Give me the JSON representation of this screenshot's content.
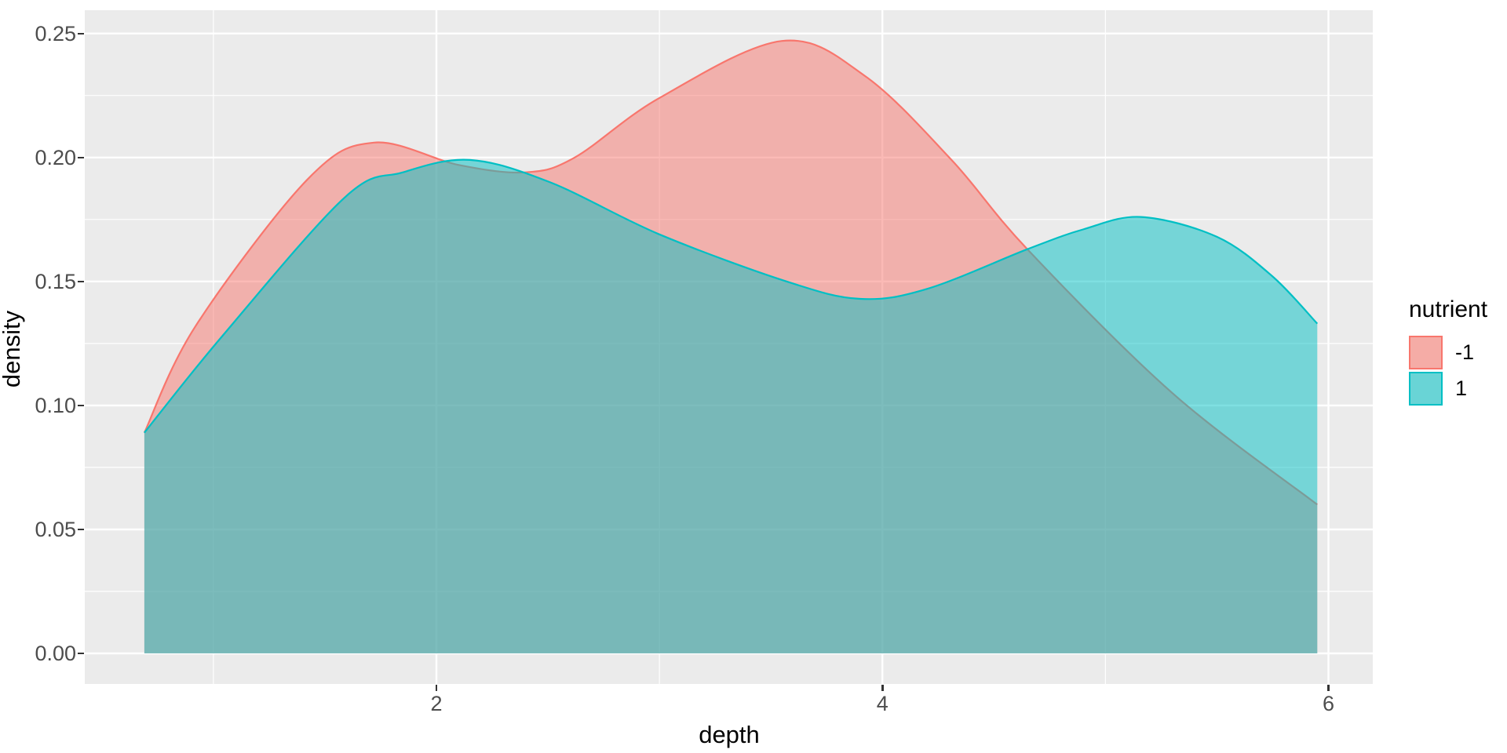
{
  "page": {
    "background": "#FFFFFF"
  },
  "chart_data": {
    "type": "area",
    "subtype": "kernel-density",
    "title": "",
    "xlabel": "depth",
    "ylabel": "density",
    "panel_bg": "#EBEBEB",
    "grid_color": "#FFFFFF",
    "grid": true,
    "tick_color": "#333333",
    "tick_label_color": "#4D4D4D",
    "xlim": [
      0.423,
      6.199
    ],
    "ylim": [
      -0.01233,
      0.2594
    ],
    "x_ticks": [
      {
        "v": 2,
        "label": "2"
      },
      {
        "v": 4,
        "label": "4"
      },
      {
        "v": 6,
        "label": "6"
      }
    ],
    "y_ticks": [
      {
        "v": 0.0,
        "label": "0.00"
      },
      {
        "v": 0.05,
        "label": "0.05"
      },
      {
        "v": 0.1,
        "label": "0.10"
      },
      {
        "v": 0.15,
        "label": "0.15"
      },
      {
        "v": 0.2,
        "label": "0.20"
      },
      {
        "v": 0.25,
        "label": "0.25"
      }
    ],
    "x_minor": [
      1,
      3,
      5
    ],
    "y_minor": [
      0.025,
      0.075,
      0.125,
      0.175,
      0.225
    ],
    "legend_position": "right",
    "legend": {
      "title": "nutrient",
      "entries": [
        {
          "label": "-1",
          "color": "#F8766D",
          "key_fill": "#F5ACA6"
        },
        {
          "label": "1",
          "color": "#00BFC4",
          "key_fill": "#69D4D6"
        }
      ]
    },
    "series": [
      {
        "name": "-1",
        "color": "#F8766D",
        "fill": "rgba(248,118,109,0.5)",
        "points": [
          [
            0.69,
            0.089
          ],
          [
            0.92,
            0.132
          ],
          [
            1.42,
            0.191
          ],
          [
            1.72,
            0.206
          ],
          [
            2.1,
            0.197
          ],
          [
            2.4,
            0.194
          ],
          [
            2.62,
            0.2
          ],
          [
            3.0,
            0.224
          ],
          [
            3.55,
            0.247
          ],
          [
            3.92,
            0.233
          ],
          [
            4.31,
            0.199
          ],
          [
            4.65,
            0.163
          ],
          [
            5.3,
            0.105
          ],
          [
            5.95,
            0.06
          ]
        ]
      },
      {
        "name": "1",
        "color": "#00BFC4",
        "fill": "rgba(0,191,196,0.5)",
        "points": [
          [
            0.69,
            0.089
          ],
          [
            1.04,
            0.128
          ],
          [
            1.59,
            0.184
          ],
          [
            1.85,
            0.194
          ],
          [
            2.15,
            0.199
          ],
          [
            2.51,
            0.19
          ],
          [
            3.0,
            0.169
          ],
          [
            3.57,
            0.15
          ],
          [
            3.9,
            0.143
          ],
          [
            4.2,
            0.147
          ],
          [
            4.65,
            0.163
          ],
          [
            4.9,
            0.171
          ],
          [
            5.16,
            0.176
          ],
          [
            5.5,
            0.168
          ],
          [
            5.75,
            0.152
          ],
          [
            5.95,
            0.133
          ]
        ]
      }
    ]
  }
}
